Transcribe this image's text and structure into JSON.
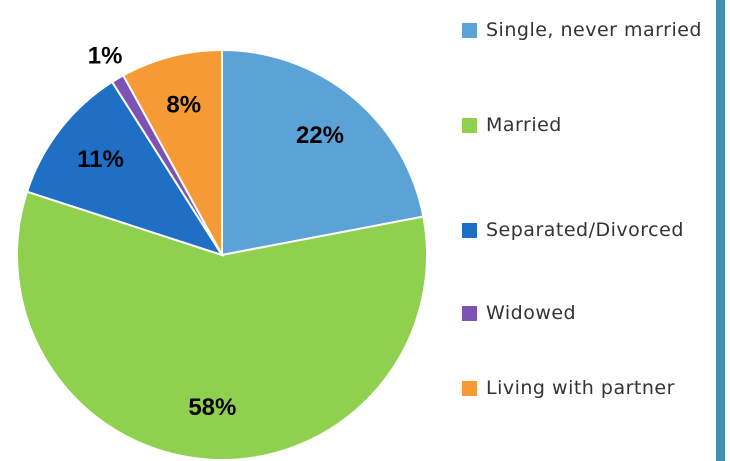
{
  "chart_data": {
    "type": "pie",
    "categories": [
      "Single, never married",
      "Married",
      "Separated/Divorced",
      "Widowed",
      "Living with partner"
    ],
    "values": [
      22,
      58,
      11,
      1,
      8
    ],
    "value_labels": [
      "22%",
      "58%",
      "11%",
      "1%",
      "8%"
    ],
    "colors": [
      "#5ba3d6",
      "#8fd14f",
      "#1f6fc5",
      "#7d52b4",
      "#f59a34"
    ],
    "legend": "right"
  }
}
